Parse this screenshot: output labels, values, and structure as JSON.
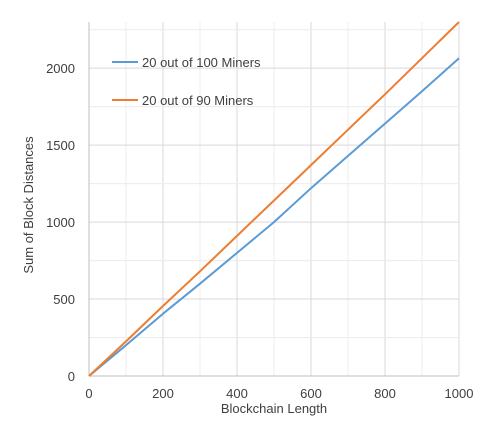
{
  "chart_data": {
    "type": "line",
    "title": "",
    "xlabel": "Blockchain Length",
    "ylabel": "Sum of Block Distances",
    "xlim": [
      0,
      1000
    ],
    "ylim": [
      0,
      2300
    ],
    "x_ticks": [
      0,
      200,
      400,
      600,
      800,
      1000
    ],
    "y_ticks": [
      0,
      500,
      1000,
      1500,
      2000
    ],
    "grid": true,
    "legend_position": "top-left",
    "series": [
      {
        "name": "20 out of 100 Miners",
        "color": "#5B9BD5",
        "x": [
          0,
          100,
          200,
          300,
          400,
          500,
          600,
          700,
          800,
          900,
          1000
        ],
        "y": [
          0,
          200,
          405,
          600,
          800,
          1000,
          1220,
          1430,
          1640,
          1850,
          2065
        ]
      },
      {
        "name": "20 out of 90 Miners",
        "color": "#ED7D31",
        "x": [
          0,
          100,
          200,
          300,
          400,
          500,
          600,
          700,
          800,
          900,
          1000
        ],
        "y": [
          0,
          225,
          455,
          680,
          910,
          1140,
          1370,
          1600,
          1830,
          2065,
          2300
        ]
      }
    ]
  }
}
